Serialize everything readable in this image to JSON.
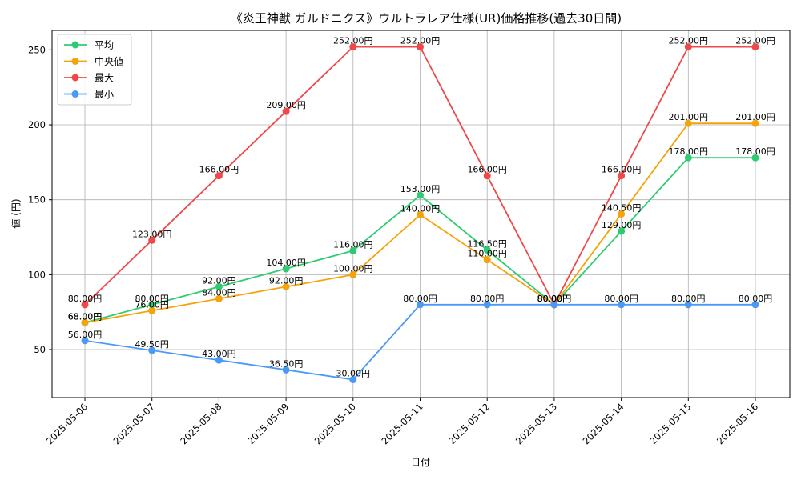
{
  "chart_data": {
    "type": "line",
    "title": "《炎王神獣 ガルドニクス》ウルトラレア仕様(UR)価格推移(過去30日間)",
    "xlabel": "日付",
    "ylabel": "値 (円)",
    "x": [
      "2025-05-06",
      "2025-05-07",
      "2025-05-08",
      "2025-05-09",
      "2025-05-10",
      "2025-05-11",
      "2025-05-12",
      "2025-05-13",
      "2025-05-14",
      "2025-05-15",
      "2025-05-16"
    ],
    "ylim": [
      18,
      263
    ],
    "yticks": [
      50,
      100,
      150,
      200,
      250
    ],
    "grid": true,
    "legend_position": "top-left",
    "label_suffix": "円",
    "series": [
      {
        "name": "平均",
        "color": "#2ecc71",
        "values": [
          68,
          80,
          92,
          104,
          116,
          153,
          116.5,
          80,
          129,
          178,
          178
        ]
      },
      {
        "name": "中央値",
        "color": "#f5a30a",
        "values": [
          68,
          76,
          84,
          92,
          100,
          140,
          110,
          80,
          140.5,
          201,
          201
        ]
      },
      {
        "name": "最大",
        "color": "#f04848",
        "values": [
          80,
          123,
          166,
          209,
          252,
          252,
          166,
          80,
          166,
          252,
          252
        ]
      },
      {
        "name": "最小",
        "color": "#4a9af5",
        "values": [
          56,
          49.5,
          43,
          36.5,
          30,
          80,
          80,
          80,
          80,
          80,
          80
        ]
      }
    ]
  }
}
